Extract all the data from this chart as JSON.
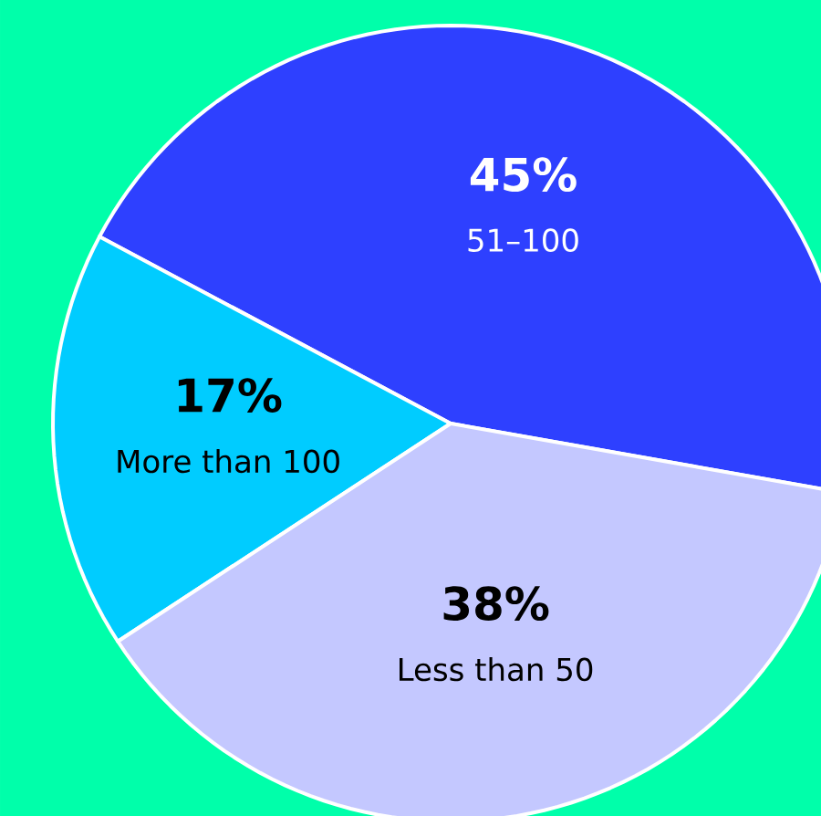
{
  "chart_data": {
    "type": "pie",
    "categories": [
      "51–100",
      "More than 100",
      "Less than 50"
    ],
    "values": [
      45,
      17,
      38
    ],
    "value_labels": [
      "45%",
      "17%",
      "38%"
    ],
    "colors": [
      "#2e40ff",
      "#00ccff",
      "#c4c8ff"
    ]
  }
}
